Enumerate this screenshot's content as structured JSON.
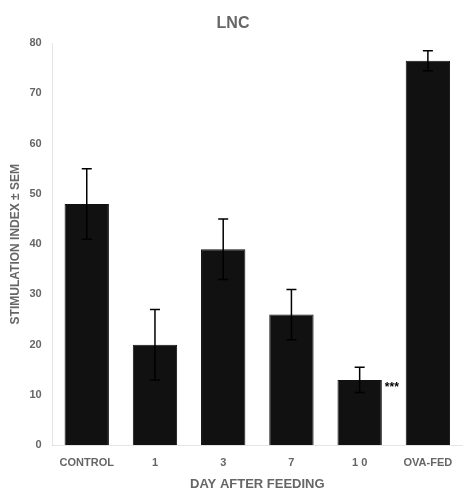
{
  "chart_data": {
    "type": "bar",
    "title": "LNC",
    "xlabel": "DAY AFTER FEEDING",
    "ylabel": "STIMULATION INDEX ± SEM",
    "categories": [
      "CONTROL",
      "1",
      "3",
      "7",
      "1 0",
      "OVA-FED"
    ],
    "values": [
      48,
      20,
      39,
      26,
      13,
      76.5
    ],
    "errors": [
      7,
      7,
      6,
      5,
      2.5,
      2
    ],
    "color": "#111111",
    "ylim": [
      0,
      80
    ],
    "yticks": [
      0,
      10,
      20,
      30,
      40,
      50,
      60,
      70,
      80
    ],
    "grid": false,
    "annotations": [
      {
        "text": "***",
        "category": "1 0"
      }
    ]
  }
}
